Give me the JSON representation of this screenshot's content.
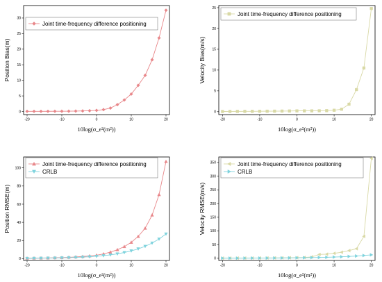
{
  "chart_data": [
    {
      "type": "line",
      "ylabel": "Position Bias(m)",
      "xlabel": "10log(σ_e²(m²))",
      "xticks": [
        -20,
        -10,
        0,
        10,
        20
      ],
      "yticks": [
        0,
        5,
        10,
        15,
        20,
        25,
        30
      ],
      "xlim": [
        -21,
        21
      ],
      "ylim": [
        -1,
        34
      ],
      "legend_position": "top-left",
      "series": [
        {
          "name": "Joint time-frequency difference positioning",
          "marker": "diamond",
          "color": "#e8878a",
          "x": [
            -20,
            -18,
            -16,
            -14,
            -12,
            -10,
            -8,
            -6,
            -4,
            -2,
            0,
            2,
            4,
            6,
            8,
            10,
            12,
            14,
            16,
            18,
            20
          ],
          "y": [
            0.05,
            0.05,
            0.05,
            0.06,
            0.07,
            0.08,
            0.1,
            0.13,
            0.18,
            0.25,
            0.35,
            0.6,
            1.1,
            2.2,
            3.7,
            5.6,
            8.4,
            11.6,
            16.6,
            23.6,
            32.5
          ]
        }
      ]
    },
    {
      "type": "line",
      "ylabel": "Velocity Bias(m/s)",
      "xlabel": "10log(σ_e²(m²))",
      "xticks": [
        -20,
        -10,
        0,
        10,
        20
      ],
      "yticks": [
        0,
        5,
        10,
        15,
        20,
        25
      ],
      "xlim": [
        -21,
        21
      ],
      "ylim": [
        -0.7,
        25.5
      ],
      "legend_position": "top-left",
      "series": [
        {
          "name": "Joint time-frequency difference positioning",
          "marker": "square",
          "color": "#d9d9a6",
          "x": [
            -20,
            -18,
            -16,
            -14,
            -12,
            -10,
            -8,
            -6,
            -4,
            -2,
            0,
            2,
            4,
            6,
            8,
            10,
            12,
            14,
            16,
            18,
            20
          ],
          "y": [
            0.05,
            0.06,
            0.07,
            0.08,
            0.09,
            0.1,
            0.12,
            0.13,
            0.15,
            0.17,
            0.2,
            0.2,
            0.2,
            0.22,
            0.25,
            0.35,
            0.6,
            1.8,
            5.3,
            10.5,
            24.8
          ]
        }
      ]
    },
    {
      "type": "line",
      "ylabel": "Position RMSE(m)",
      "xlabel": "10log(σ_e²(m²))",
      "xticks": [
        -20,
        -10,
        0,
        10,
        20
      ],
      "yticks": [
        0,
        20,
        40,
        60,
        80,
        100
      ],
      "xlim": [
        -21,
        21
      ],
      "ylim": [
        -2,
        112
      ],
      "legend_position": "top-left",
      "series": [
        {
          "name": "Joint time-frequency difference positioning",
          "marker": "triangle-up",
          "color": "#e8878a",
          "x": [
            -20,
            -18,
            -16,
            -14,
            -12,
            -10,
            -8,
            -6,
            -4,
            -2,
            0,
            2,
            4,
            6,
            8,
            10,
            12,
            14,
            16,
            18,
            20
          ],
          "y": [
            0.5,
            0.6,
            0.7,
            0.8,
            1.0,
            1.2,
            1.5,
            1.9,
            2.4,
            3.0,
            3.8,
            5.2,
            7.2,
            9.8,
            13.3,
            18.0,
            24.5,
            33.5,
            48.0,
            70.5,
            107.0
          ]
        },
        {
          "name": "CRLB",
          "marker": "triangle-down",
          "color": "#7fd3dd",
          "x": [
            -20,
            -18,
            -16,
            -14,
            -12,
            -10,
            -8,
            -6,
            -4,
            -2,
            0,
            2,
            4,
            6,
            8,
            10,
            12,
            14,
            16,
            18,
            20
          ],
          "y": [
            0.3,
            0.4,
            0.5,
            0.6,
            0.7,
            0.9,
            1.1,
            1.4,
            1.7,
            2.1,
            2.6,
            3.3,
            4.2,
            5.3,
            6.8,
            8.6,
            10.8,
            13.6,
            17.2,
            21.6,
            27.2
          ]
        }
      ]
    },
    {
      "type": "line",
      "ylabel": "Velocity RMSE(m/s)",
      "xlabel": "10log(σ_e²(m²))",
      "xticks": [
        -20,
        -10,
        0,
        10,
        20
      ],
      "yticks": [
        0,
        50,
        100,
        150,
        200,
        250,
        300,
        350
      ],
      "xlim": [
        -21,
        21
      ],
      "ylim": [
        -8,
        370
      ],
      "legend_position": "top-left",
      "series": [
        {
          "name": "Joint time-frequency difference positioning",
          "marker": "triangle-left",
          "color": "#d9d9a6",
          "x": [
            -20,
            -18,
            -16,
            -14,
            -12,
            -10,
            -8,
            -6,
            -4,
            -2,
            0,
            2,
            4,
            6,
            8,
            10,
            12,
            14,
            16,
            18,
            20
          ],
          "y": [
            0.5,
            0.6,
            0.7,
            0.8,
            0.9,
            1.0,
            1.2,
            1.4,
            1.6,
            1.9,
            2.2,
            3,
            5,
            14,
            15,
            18,
            22,
            28,
            35,
            80,
            365
          ]
        },
        {
          "name": "CRLB",
          "marker": "triangle-right",
          "color": "#7fd3dd",
          "x": [
            -20,
            -18,
            -16,
            -14,
            -12,
            -10,
            -8,
            -6,
            -4,
            -2,
            0,
            2,
            4,
            6,
            8,
            10,
            12,
            14,
            16,
            18,
            20
          ],
          "y": [
            0.3,
            0.35,
            0.4,
            0.5,
            0.6,
            0.7,
            0.8,
            1.0,
            1.2,
            1.4,
            1.7,
            2.0,
            2.5,
            3.0,
            3.7,
            4.5,
            5.5,
            6.8,
            8.3,
            10.2,
            12.5
          ]
        }
      ]
    }
  ]
}
